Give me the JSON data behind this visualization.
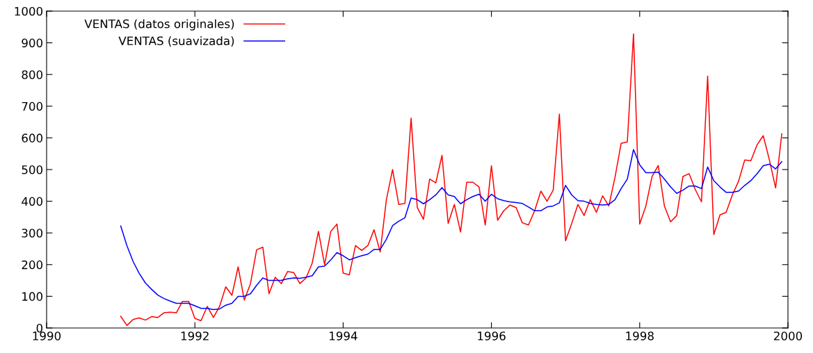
{
  "chart_data": {
    "type": "line",
    "x": [
      "1991-01",
      "1991-02",
      "1991-03",
      "1991-04",
      "1991-05",
      "1991-06",
      "1991-07",
      "1991-08",
      "1991-09",
      "1991-10",
      "1991-11",
      "1991-12",
      "1992-01",
      "1992-02",
      "1992-03",
      "1992-04",
      "1992-05",
      "1992-06",
      "1992-07",
      "1992-08",
      "1992-09",
      "1992-10",
      "1992-11",
      "1992-12",
      "1993-01",
      "1993-02",
      "1993-03",
      "1993-04",
      "1993-05",
      "1993-06",
      "1993-07",
      "1993-08",
      "1993-09",
      "1993-10",
      "1993-11",
      "1993-12",
      "1994-01",
      "1994-02",
      "1994-03",
      "1994-04",
      "1994-05",
      "1994-06",
      "1994-07",
      "1994-08",
      "1994-09",
      "1994-10",
      "1994-11",
      "1994-12",
      "1995-01",
      "1995-02",
      "1995-03",
      "1995-04",
      "1995-05",
      "1995-06",
      "1995-07",
      "1995-08",
      "1995-09",
      "1995-10",
      "1995-11",
      "1995-12",
      "1996-01",
      "1996-02",
      "1996-03",
      "1996-04",
      "1996-05",
      "1996-06",
      "1996-07",
      "1996-08",
      "1996-09",
      "1996-10",
      "1996-11",
      "1996-12",
      "1997-01",
      "1997-02",
      "1997-03",
      "1997-04",
      "1997-05",
      "1997-06",
      "1997-07",
      "1997-08",
      "1997-09",
      "1997-10",
      "1997-11",
      "1997-12",
      "1998-01",
      "1998-02",
      "1998-03",
      "1998-04",
      "1998-05",
      "1998-06",
      "1998-07",
      "1998-08",
      "1998-09",
      "1998-10",
      "1998-11",
      "1998-12",
      "1999-01",
      "1999-02",
      "1999-03",
      "1999-04",
      "1999-05",
      "1999-06",
      "1999-07",
      "1999-08",
      "1999-09",
      "1999-10",
      "1999-11",
      "1999-12"
    ],
    "series": [
      {
        "name": "VENTAS (datos originales)",
        "color": "#ff0000",
        "values": [
          37,
          8,
          27,
          32,
          25,
          36,
          33,
          48,
          50,
          48,
          84,
          84,
          30,
          23,
          68,
          33,
          68,
          130,
          103,
          193,
          88,
          140,
          247,
          255,
          108,
          160,
          140,
          178,
          175,
          140,
          158,
          205,
          305,
          200,
          305,
          328,
          173,
          168,
          260,
          245,
          260,
          310,
          240,
          405,
          500,
          390,
          393,
          662,
          380,
          343,
          470,
          458,
          545,
          330,
          390,
          303,
          460,
          460,
          445,
          325,
          512,
          340,
          370,
          388,
          380,
          332,
          325,
          370,
          432,
          400,
          435,
          675,
          275,
          330,
          390,
          355,
          405,
          365,
          417,
          385,
          475,
          583,
          587,
          928,
          328,
          385,
          478,
          513,
          385,
          335,
          355,
          478,
          487,
          437,
          398,
          795,
          295,
          357,
          365,
          420,
          463,
          530,
          528,
          578,
          607,
          530,
          442,
          613
        ]
      },
      {
        "name": "VENTAS (suavizada)",
        "color": "#0000ff",
        "values": [
          322,
          260,
          210,
          172,
          142,
          122,
          104,
          93,
          85,
          78,
          78,
          78,
          70,
          62,
          62,
          58,
          60,
          72,
          78,
          100,
          100,
          108,
          135,
          158,
          150,
          150,
          150,
          155,
          158,
          157,
          160,
          165,
          193,
          195,
          215,
          238,
          228,
          215,
          222,
          228,
          233,
          248,
          248,
          280,
          323,
          337,
          348,
          410,
          405,
          392,
          405,
          420,
          443,
          420,
          415,
          392,
          405,
          415,
          422,
          400,
          422,
          408,
          402,
          398,
          396,
          393,
          382,
          370,
          370,
          382,
          385,
          395,
          450,
          420,
          402,
          400,
          393,
          390,
          388,
          390,
          405,
          440,
          470,
          563,
          515,
          490,
          490,
          492,
          470,
          445,
          425,
          435,
          448,
          448,
          440,
          508,
          465,
          445,
          428,
          428,
          432,
          450,
          465,
          487,
          512,
          517,
          502,
          525
        ]
      }
    ],
    "xlim": [
      "1990",
      "2000"
    ],
    "xticks": [
      {
        "value": "1990",
        "label": "1990"
      },
      {
        "value": "1992",
        "label": "1992"
      },
      {
        "value": "1994",
        "label": "1994"
      },
      {
        "value": "1996",
        "label": "1996"
      },
      {
        "value": "1998",
        "label": "1998"
      },
      {
        "value": "2000",
        "label": "2000"
      }
    ],
    "ylim": [
      0,
      1000
    ],
    "yticks": [
      0,
      100,
      200,
      300,
      400,
      500,
      600,
      700,
      800,
      900,
      1000
    ],
    "grid": false,
    "legend": "top left",
    "marker": "none",
    "line_style": "solid"
  }
}
